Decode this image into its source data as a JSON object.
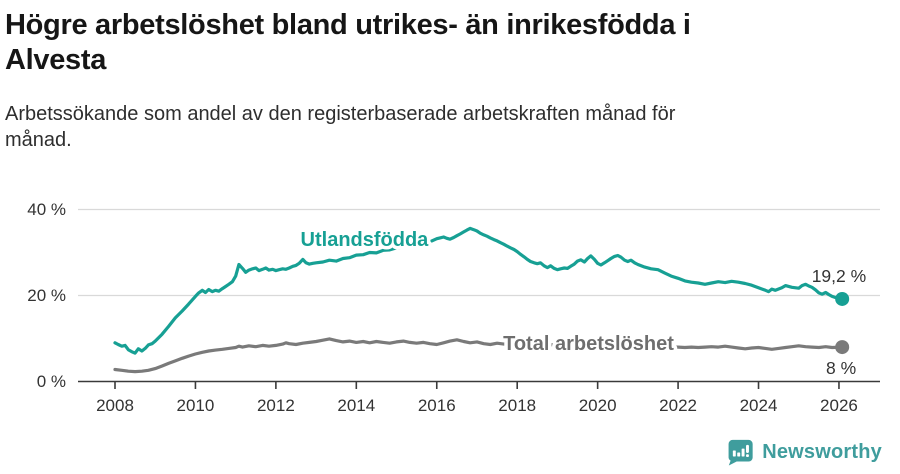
{
  "header": {
    "title_line1": "Högre arbetslöshet bland utrikes- än inrikesfödda i",
    "title_line2": "Alvesta",
    "subtitle_line1": "Arbetssökande som andel av den registerbaserade arbetskraften månad för",
    "subtitle_line2": "månad."
  },
  "colors": {
    "accent_teal": "#17a094",
    "series_gray": "#7a7a7a",
    "label_gray": "#6e6e6e",
    "axis": "#3a3a3a",
    "tick_text": "#333333",
    "grid": "#d9d9d9",
    "logo_teal": "#3f9d9d",
    "value_label": "#333333"
  },
  "chart_data": {
    "type": "line",
    "title": "Högre arbetslöshet bland utrikes- än inrikesfödda i Alvesta",
    "subtitle": "Arbetssökande som andel av den registerbaserade arbetskraften månad för månad.",
    "xlabel": "",
    "ylabel": "",
    "grid": "horizontal",
    "legend_position": "inline-labels",
    "xlim": [
      2007.1,
      2027.0
    ],
    "ylim": [
      0,
      43
    ],
    "x_ticks": [
      2008,
      2010,
      2012,
      2014,
      2016,
      2018,
      2020,
      2022,
      2024,
      2026
    ],
    "x_tick_labels": [
      "2008",
      "2010",
      "2012",
      "2014",
      "2016",
      "2018",
      "2020",
      "2022",
      "2024",
      "2026"
    ],
    "y_ticks": [
      0,
      20,
      40
    ],
    "y_tick_labels": [
      "0 %",
      "20 %",
      "40 %"
    ],
    "series": [
      {
        "name": "Utlandsfödda",
        "color": "#17a094",
        "end_label": "19,2 %",
        "end_value": 19.2,
        "label_anchor": "end",
        "label_pos": [
          2015.79,
          31.5
        ],
        "points": [
          [
            2008.0,
            9.0
          ],
          [
            2008.08,
            8.6
          ],
          [
            2008.17,
            8.2
          ],
          [
            2008.25,
            8.4
          ],
          [
            2008.33,
            7.4
          ],
          [
            2008.42,
            6.9
          ],
          [
            2008.5,
            6.6
          ],
          [
            2008.58,
            7.6
          ],
          [
            2008.67,
            7.1
          ],
          [
            2008.75,
            7.7
          ],
          [
            2008.83,
            8.5
          ],
          [
            2008.92,
            8.8
          ],
          [
            2009.0,
            9.4
          ],
          [
            2009.17,
            11.0
          ],
          [
            2009.33,
            12.8
          ],
          [
            2009.5,
            14.8
          ],
          [
            2009.67,
            16.4
          ],
          [
            2009.83,
            18.0
          ],
          [
            2010.0,
            19.8
          ],
          [
            2010.08,
            20.6
          ],
          [
            2010.17,
            21.2
          ],
          [
            2010.25,
            20.7
          ],
          [
            2010.33,
            21.4
          ],
          [
            2010.42,
            20.9
          ],
          [
            2010.5,
            21.2
          ],
          [
            2010.58,
            21.0
          ],
          [
            2010.67,
            21.6
          ],
          [
            2010.75,
            22.1
          ],
          [
            2010.83,
            22.6
          ],
          [
            2010.92,
            23.2
          ],
          [
            2011.0,
            24.5
          ],
          [
            2011.08,
            27.2
          ],
          [
            2011.17,
            26.3
          ],
          [
            2011.25,
            25.4
          ],
          [
            2011.33,
            25.9
          ],
          [
            2011.42,
            26.2
          ],
          [
            2011.5,
            26.4
          ],
          [
            2011.58,
            25.8
          ],
          [
            2011.67,
            26.1
          ],
          [
            2011.75,
            26.4
          ],
          [
            2011.83,
            25.9
          ],
          [
            2011.92,
            26.1
          ],
          [
            2012.0,
            25.8
          ],
          [
            2012.08,
            26.0
          ],
          [
            2012.17,
            26.2
          ],
          [
            2012.25,
            26.1
          ],
          [
            2012.33,
            26.4
          ],
          [
            2012.42,
            26.8
          ],
          [
            2012.5,
            27.0
          ],
          [
            2012.58,
            27.5
          ],
          [
            2012.67,
            28.4
          ],
          [
            2012.75,
            27.6
          ],
          [
            2012.83,
            27.3
          ],
          [
            2012.92,
            27.5
          ],
          [
            2013.0,
            27.6
          ],
          [
            2013.17,
            27.8
          ],
          [
            2013.33,
            28.2
          ],
          [
            2013.5,
            28.0
          ],
          [
            2013.67,
            28.6
          ],
          [
            2013.83,
            28.8
          ],
          [
            2014.0,
            29.4
          ],
          [
            2014.17,
            29.5
          ],
          [
            2014.33,
            30.0
          ],
          [
            2014.5,
            29.9
          ],
          [
            2014.67,
            30.5
          ],
          [
            2014.83,
            30.6
          ],
          [
            2015.0,
            31.1
          ],
          [
            2015.17,
            31.2
          ],
          [
            2015.33,
            31.7
          ],
          [
            2015.5,
            31.8
          ],
          [
            2015.67,
            32.3
          ],
          [
            2015.83,
            32.5
          ],
          [
            2016.0,
            33.2
          ],
          [
            2016.08,
            33.4
          ],
          [
            2016.17,
            33.6
          ],
          [
            2016.25,
            33.3
          ],
          [
            2016.33,
            33.1
          ],
          [
            2016.42,
            33.5
          ],
          [
            2016.5,
            33.9
          ],
          [
            2016.58,
            34.3
          ],
          [
            2016.67,
            34.8
          ],
          [
            2016.75,
            35.2
          ],
          [
            2016.83,
            35.6
          ],
          [
            2016.92,
            35.3
          ],
          [
            2017.0,
            35.0
          ],
          [
            2017.08,
            34.5
          ],
          [
            2017.17,
            34.1
          ],
          [
            2017.25,
            33.8
          ],
          [
            2017.33,
            33.4
          ],
          [
            2017.42,
            33.0
          ],
          [
            2017.5,
            32.7
          ],
          [
            2017.58,
            32.3
          ],
          [
            2017.67,
            31.9
          ],
          [
            2017.75,
            31.5
          ],
          [
            2017.83,
            31.1
          ],
          [
            2017.92,
            30.7
          ],
          [
            2018.0,
            30.2
          ],
          [
            2018.08,
            29.6
          ],
          [
            2018.17,
            29.0
          ],
          [
            2018.25,
            28.4
          ],
          [
            2018.33,
            27.9
          ],
          [
            2018.42,
            27.6
          ],
          [
            2018.5,
            27.4
          ],
          [
            2018.58,
            27.6
          ],
          [
            2018.67,
            26.9
          ],
          [
            2018.75,
            26.5
          ],
          [
            2018.83,
            26.9
          ],
          [
            2018.92,
            26.3
          ],
          [
            2019.0,
            26.0
          ],
          [
            2019.08,
            26.2
          ],
          [
            2019.17,
            26.4
          ],
          [
            2019.25,
            26.3
          ],
          [
            2019.33,
            26.8
          ],
          [
            2019.42,
            27.3
          ],
          [
            2019.5,
            28.0
          ],
          [
            2019.58,
            28.3
          ],
          [
            2019.67,
            27.8
          ],
          [
            2019.75,
            28.6
          ],
          [
            2019.83,
            29.2
          ],
          [
            2019.92,
            28.4
          ],
          [
            2020.0,
            27.5
          ],
          [
            2020.08,
            27.1
          ],
          [
            2020.17,
            27.6
          ],
          [
            2020.25,
            28.1
          ],
          [
            2020.33,
            28.6
          ],
          [
            2020.42,
            29.1
          ],
          [
            2020.5,
            29.3
          ],
          [
            2020.58,
            28.9
          ],
          [
            2020.67,
            28.2
          ],
          [
            2020.75,
            27.9
          ],
          [
            2020.83,
            28.2
          ],
          [
            2020.92,
            27.6
          ],
          [
            2021.0,
            27.2
          ],
          [
            2021.17,
            26.6
          ],
          [
            2021.33,
            26.2
          ],
          [
            2021.5,
            26.0
          ],
          [
            2021.67,
            25.2
          ],
          [
            2021.83,
            24.5
          ],
          [
            2022.0,
            24.0
          ],
          [
            2022.17,
            23.4
          ],
          [
            2022.33,
            23.1
          ],
          [
            2022.5,
            22.9
          ],
          [
            2022.67,
            22.6
          ],
          [
            2022.83,
            22.9
          ],
          [
            2023.0,
            23.2
          ],
          [
            2023.17,
            23.0
          ],
          [
            2023.33,
            23.3
          ],
          [
            2023.5,
            23.1
          ],
          [
            2023.67,
            22.8
          ],
          [
            2023.83,
            22.4
          ],
          [
            2024.0,
            21.8
          ],
          [
            2024.17,
            21.2
          ],
          [
            2024.25,
            20.9
          ],
          [
            2024.33,
            21.5
          ],
          [
            2024.42,
            21.2
          ],
          [
            2024.58,
            21.8
          ],
          [
            2024.67,
            22.3
          ],
          [
            2024.83,
            21.9
          ],
          [
            2025.0,
            21.7
          ],
          [
            2025.08,
            22.3
          ],
          [
            2025.17,
            22.6
          ],
          [
            2025.25,
            22.2
          ],
          [
            2025.33,
            21.9
          ],
          [
            2025.42,
            21.3
          ],
          [
            2025.5,
            20.6
          ],
          [
            2025.58,
            20.3
          ],
          [
            2025.67,
            20.7
          ],
          [
            2025.75,
            20.2
          ],
          [
            2025.83,
            19.8
          ],
          [
            2025.92,
            19.5
          ],
          [
            2026.08,
            19.2
          ]
        ]
      },
      {
        "name": "Total arbetslöshet",
        "color": "#7a7a7a",
        "end_label": "8 %",
        "end_value": 8.0,
        "label_anchor": "start",
        "label_pos": [
          2017.65,
          7.35
        ],
        "points": [
          [
            2008.0,
            2.8
          ],
          [
            2008.17,
            2.6
          ],
          [
            2008.33,
            2.4
          ],
          [
            2008.5,
            2.3
          ],
          [
            2008.67,
            2.4
          ],
          [
            2008.83,
            2.6
          ],
          [
            2009.0,
            3.0
          ],
          [
            2009.17,
            3.6
          ],
          [
            2009.33,
            4.2
          ],
          [
            2009.5,
            4.8
          ],
          [
            2009.67,
            5.4
          ],
          [
            2009.83,
            5.9
          ],
          [
            2010.0,
            6.4
          ],
          [
            2010.17,
            6.8
          ],
          [
            2010.33,
            7.1
          ],
          [
            2010.5,
            7.3
          ],
          [
            2010.67,
            7.5
          ],
          [
            2010.83,
            7.7
          ],
          [
            2011.0,
            7.9
          ],
          [
            2011.08,
            8.2
          ],
          [
            2011.17,
            8.0
          ],
          [
            2011.33,
            8.3
          ],
          [
            2011.5,
            8.1
          ],
          [
            2011.67,
            8.4
          ],
          [
            2011.83,
            8.2
          ],
          [
            2012.0,
            8.4
          ],
          [
            2012.17,
            8.7
          ],
          [
            2012.25,
            9.0
          ],
          [
            2012.33,
            8.8
          ],
          [
            2012.5,
            8.6
          ],
          [
            2012.67,
            8.9
          ],
          [
            2012.83,
            9.1
          ],
          [
            2013.0,
            9.3
          ],
          [
            2013.17,
            9.6
          ],
          [
            2013.33,
            9.9
          ],
          [
            2013.5,
            9.5
          ],
          [
            2013.67,
            9.2
          ],
          [
            2013.83,
            9.4
          ],
          [
            2014.0,
            9.1
          ],
          [
            2014.17,
            9.3
          ],
          [
            2014.33,
            9.0
          ],
          [
            2014.5,
            9.3
          ],
          [
            2014.67,
            9.1
          ],
          [
            2014.83,
            8.9
          ],
          [
            2015.0,
            9.2
          ],
          [
            2015.17,
            9.4
          ],
          [
            2015.33,
            9.1
          ],
          [
            2015.5,
            8.9
          ],
          [
            2015.67,
            9.1
          ],
          [
            2015.83,
            8.8
          ],
          [
            2016.0,
            8.6
          ],
          [
            2016.17,
            9.0
          ],
          [
            2016.33,
            9.4
          ],
          [
            2016.5,
            9.7
          ],
          [
            2016.67,
            9.3
          ],
          [
            2016.83,
            9.0
          ],
          [
            2017.0,
            9.2
          ],
          [
            2017.17,
            8.8
          ],
          [
            2017.33,
            8.6
          ],
          [
            2017.5,
            8.9
          ],
          [
            2017.67,
            8.7
          ],
          [
            2017.83,
            8.9
          ],
          [
            2018.0,
            8.8
          ],
          [
            2018.5,
            8.6
          ],
          [
            2019.0,
            8.5
          ],
          [
            2019.5,
            8.4
          ],
          [
            2020.0,
            8.6
          ],
          [
            2020.5,
            8.4
          ],
          [
            2021.0,
            8.2
          ],
          [
            2021.5,
            8.1
          ],
          [
            2022.0,
            8.0
          ],
          [
            2022.17,
            7.9
          ],
          [
            2022.33,
            8.0
          ],
          [
            2022.5,
            7.9
          ],
          [
            2022.67,
            8.0
          ],
          [
            2022.83,
            8.1
          ],
          [
            2023.0,
            8.0
          ],
          [
            2023.17,
            8.2
          ],
          [
            2023.33,
            8.0
          ],
          [
            2023.5,
            7.8
          ],
          [
            2023.67,
            7.6
          ],
          [
            2023.83,
            7.8
          ],
          [
            2024.0,
            7.9
          ],
          [
            2024.17,
            7.7
          ],
          [
            2024.33,
            7.5
          ],
          [
            2024.5,
            7.7
          ],
          [
            2024.67,
            7.9
          ],
          [
            2024.83,
            8.1
          ],
          [
            2025.0,
            8.3
          ],
          [
            2025.17,
            8.1
          ],
          [
            2025.33,
            8.0
          ],
          [
            2025.5,
            7.9
          ],
          [
            2025.67,
            8.1
          ],
          [
            2025.83,
            7.9
          ],
          [
            2026.08,
            8.0
          ]
        ]
      }
    ]
  },
  "footer": {
    "brand": "Newsworthy"
  }
}
